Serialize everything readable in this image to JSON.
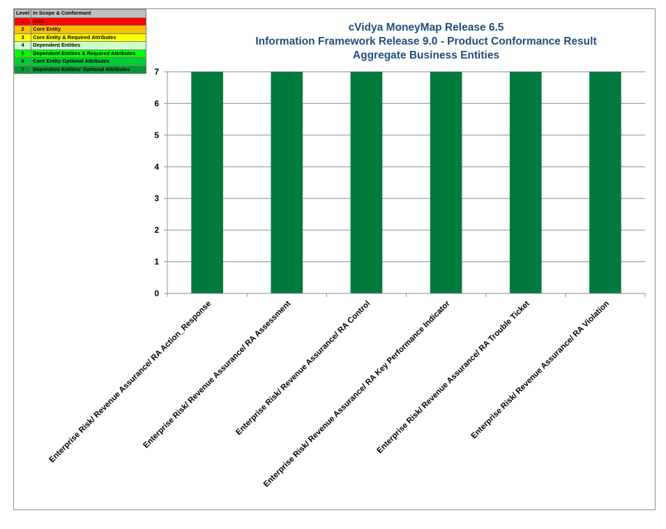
{
  "legend": {
    "header": [
      "Level",
      "In Scope & Conformant"
    ],
    "rows": [
      {
        "level": "1",
        "label": "ABE",
        "color": "#ff0000",
        "text_color": "#7a0000"
      },
      {
        "level": "2",
        "label": "Core Entity",
        "color": "#ffc000",
        "text_color": "#000000"
      },
      {
        "level": "3",
        "label": "Core Entity & Required Attributes",
        "color": "#ffff00",
        "text_color": "#000000"
      },
      {
        "level": "4",
        "label": "Dependent Entities",
        "color": "#ccffcc",
        "text_color": "#000000"
      },
      {
        "level": "5",
        "label": "Dependent Entities & Required Attributes",
        "color": "#00ff00",
        "text_color": "#000000"
      },
      {
        "level": "6",
        "label": "Core Entity Optional Attributes",
        "color": "#00cc33",
        "text_color": "#000000"
      },
      {
        "level": "7",
        "label": "Dependent Entities' Optional Attributes",
        "color": "#009933",
        "text_color": "#000000"
      }
    ],
    "header_color": "#c0c0c0"
  },
  "chart_data": {
    "type": "bar",
    "title": [
      "cVidya MoneyMap Release 6.5",
      "Information Framework Release 9.0  - Product Conformance Result",
      "Aggregate Business Entities"
    ],
    "categories": [
      "Enterprise Risk/ Revenue Assurance/ RA Action_Response",
      "Enterprise Risk/ Revenue Assurance/ RA Assessment",
      "Enterprise Risk/ Revenue Assurance/ RA Control",
      "Enterprise Risk/ Revenue Assurance/ RA Key Performance Indicator",
      "Enterprise Risk/ Revenue Assurance/ RA Trouble Ticket",
      "Enterprise Risk/ Revenue Assurance/ RA Violation"
    ],
    "values": [
      7,
      7,
      7,
      7,
      7,
      7
    ],
    "ylim": [
      0,
      7
    ],
    "yticks": [
      0,
      1,
      2,
      3,
      4,
      5,
      6,
      7
    ],
    "grid": true,
    "bar_color": "#007a3d",
    "title_color": "#1f4e79"
  }
}
